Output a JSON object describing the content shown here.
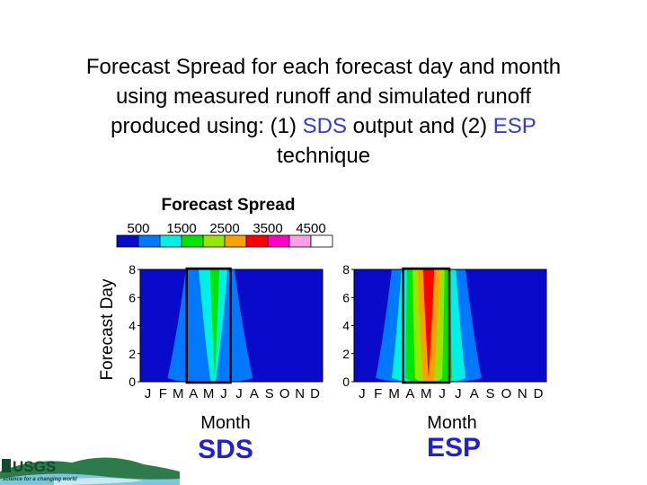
{
  "title": {
    "line1": "Forecast Spread for each forecast day and month",
    "line2": "using measured runoff and simulated runoff",
    "line3_a": "produced using: (1) ",
    "line3_sds": "SDS",
    "line3_b": " output and (2) ",
    "line3_esp": "ESP",
    "line4": "technique"
  },
  "colors": {
    "highlight": "#3b3bc4",
    "label_blue": "#2222cc"
  },
  "logo": {
    "text": "USGS",
    "tagline": "science for a changing world"
  },
  "chart_data": {
    "type": "heatmap",
    "legend": {
      "title": "Forecast Spread",
      "tick_labels": [
        "500",
        "1500",
        "2500",
        "3500",
        "4500"
      ],
      "levels": [
        500,
        1000,
        1500,
        2000,
        2500,
        3000,
        3500,
        4000,
        4500
      ],
      "colors": [
        "#0a0acd",
        "#0078ff",
        "#00f0e6",
        "#00e600",
        "#96e600",
        "#ffa000",
        "#ff0000",
        "#ff00c8",
        "#ffa0e6",
        "#ffffff"
      ]
    },
    "y_label": "Forecast Day",
    "y_ticks": [
      "0",
      "2",
      "4",
      "6",
      "8"
    ],
    "ylim": [
      0,
      8
    ],
    "x_label": "Month",
    "x_ticks": [
      "J",
      "F",
      "M",
      "A",
      "M",
      "J",
      "J",
      "A",
      "S",
      "O",
      "N",
      "D"
    ],
    "highlight_months": [
      "A",
      "M",
      "J"
    ],
    "panels": [
      {
        "name": "SDS",
        "bands": [
          {
            "level": 1,
            "center": 4.6,
            "half_width_day0": 2.8,
            "half_width_day8": 1.6
          },
          {
            "level": 2,
            "center": 4.8,
            "half_width_day0": 0.2,
            "half_width_day8": 0.95
          },
          {
            "level": 3,
            "center": 4.9,
            "half_width_day0": 0.0,
            "half_width_day8": 0.3
          }
        ]
      },
      {
        "name": "ESP",
        "bands": [
          {
            "level": 1,
            "center": 4.65,
            "half_width_day0": 3.3,
            "half_width_day8": 2.3
          },
          {
            "level": 2,
            "center": 4.65,
            "half_width_day0": 2.3,
            "half_width_day8": 1.7
          },
          {
            "level": 3,
            "center": 4.65,
            "half_width_day0": 1.45,
            "half_width_day8": 1.35
          },
          {
            "level": 4,
            "center": 4.65,
            "half_width_day0": 0.85,
            "half_width_day8": 1.0
          },
          {
            "level": 5,
            "center": 4.65,
            "half_width_day0": 0.35,
            "half_width_day8": 0.7
          },
          {
            "level": 6,
            "center": 4.65,
            "half_width_day0": 0.0,
            "half_width_day8": 0.35
          }
        ]
      }
    ]
  }
}
